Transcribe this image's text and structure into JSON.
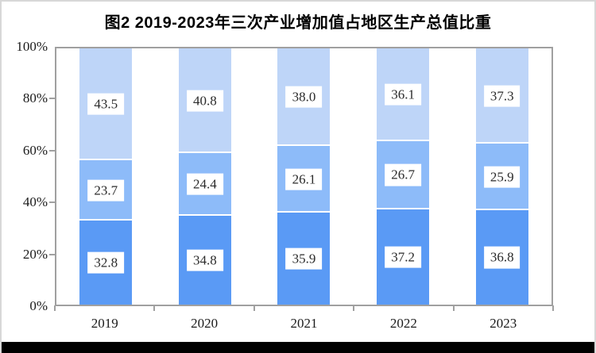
{
  "title": "图2 2019-2023年三次产业增加值占地区生产总值比重",
  "chart_data": {
    "type": "bar",
    "stacked": true,
    "title": "图2 2019-2023年三次产业增加值占地区生产总值比重",
    "categories": [
      "2019",
      "2020",
      "2021",
      "2022",
      "2023"
    ],
    "series": [
      {
        "position": "bottom",
        "color": "#5a9af5",
        "values": [
          32.8,
          34.8,
          35.9,
          37.2,
          36.8
        ]
      },
      {
        "position": "middle",
        "color": "#8dbbf9",
        "values": [
          23.7,
          24.4,
          26.1,
          26.7,
          25.9
        ]
      },
      {
        "position": "top",
        "color": "#bed5f8",
        "values": [
          43.5,
          40.8,
          38.0,
          36.1,
          37.3
        ]
      }
    ],
    "xlabel": "",
    "ylabel": "",
    "ylim": [
      0,
      100
    ],
    "y_ticks": [
      "0%",
      "20%",
      "40%",
      "60%",
      "80%",
      "100%"
    ],
    "grid": false,
    "legend": "none",
    "data_labels": true,
    "data_label_style": "white-box"
  },
  "colors": {
    "plot_border": "#a0a0a0",
    "frame_border": "#d7d7d7",
    "bottom_bar": "#000000",
    "background": "#ffffff",
    "label_text": "#2b2b2b"
  }
}
